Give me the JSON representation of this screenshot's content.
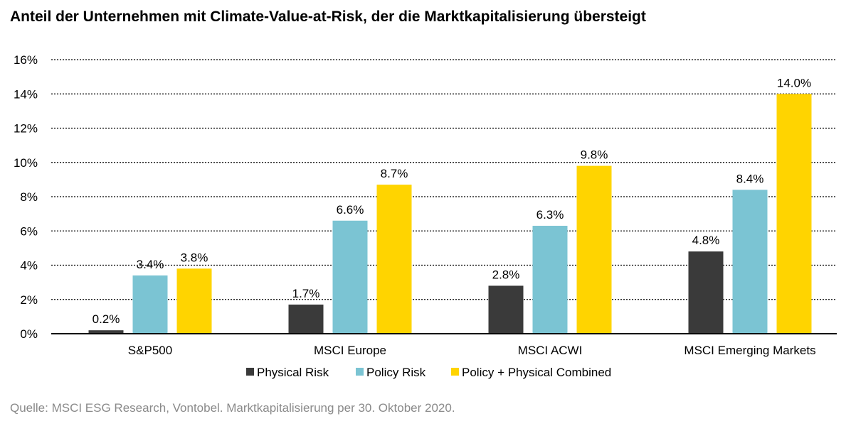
{
  "chart_data": {
    "type": "bar",
    "title": "Anteil der Unternehmen mit Climate-Value-at-Risk, der die Marktkapitalisierung übersteigt",
    "categories": [
      "S&P500",
      "MSCI Europe",
      "MSCI ACWI",
      "MSCI Emerging Markets"
    ],
    "series": [
      {
        "name": "Physical Risk",
        "color": "#3a3a3a",
        "values": [
          0.2,
          1.7,
          2.8,
          4.8
        ]
      },
      {
        "name": "Policy Risk",
        "color": "#7bc4d3",
        "values": [
          3.4,
          6.6,
          6.3,
          8.4
        ]
      },
      {
        "name": "Policy + Physical Combined",
        "color": "#ffd400",
        "values": [
          3.8,
          8.7,
          9.8,
          14.0
        ]
      }
    ],
    "ylim": [
      0,
      16
    ],
    "yticks": [
      0,
      2,
      4,
      6,
      8,
      10,
      12,
      14,
      16
    ],
    "ytick_format": "%",
    "grid": "horizontal dotted",
    "legend": "bottom",
    "xlabel": "",
    "ylabel": ""
  },
  "source": "Quelle: MSCI ESG Research, Vontobel. Marktkapitalisierung per 30. Oktober 2020."
}
